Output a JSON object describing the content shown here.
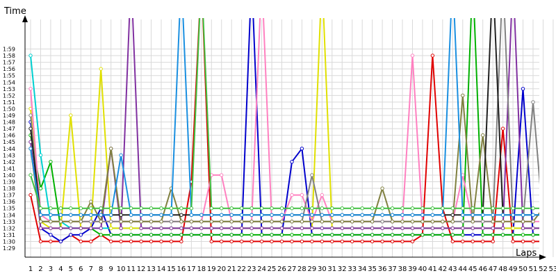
{
  "chart_data": {
    "type": "line",
    "title": "",
    "xlabel": "Laps",
    "ylabel": "Time",
    "grid": true,
    "legend": "none",
    "x": [
      1,
      2,
      3,
      4,
      5,
      6,
      7,
      8,
      9,
      10,
      11,
      12,
      13,
      14,
      15,
      16,
      17,
      18,
      19,
      20,
      21,
      22,
      23,
      24,
      25,
      26,
      27,
      28,
      29,
      30,
      31,
      32,
      33,
      34,
      35,
      36,
      37,
      38,
      39,
      40,
      41,
      42,
      43,
      44,
      45,
      46,
      47,
      48,
      49,
      50,
      51,
      52,
      53
    ],
    "x_tick_labels": [
      "1",
      "2",
      "3",
      "4",
      "5",
      "6",
      "7",
      "8",
      "9",
      "10",
      "11",
      "12",
      "13",
      "14",
      "15",
      "16",
      "17",
      "18",
      "19",
      "20",
      "21",
      "22",
      "23",
      "24",
      "25",
      "26",
      "27",
      "28",
      "29",
      "30",
      "31",
      "32",
      "33",
      "34",
      "35",
      "36",
      "37",
      "38",
      "39",
      "40",
      "41",
      "42",
      "43",
      "44",
      "45",
      "46",
      "47",
      "48",
      "49",
      "50",
      "51",
      "52",
      "53"
    ],
    "y_tick_labels": [
      "1:29",
      "1:30",
      "1:31",
      "1:32",
      "1:33",
      "1:34",
      "1:35",
      "1:36",
      "1:37",
      "1:38",
      "1:39",
      "1:40",
      "1:41",
      "1:42",
      "1:43",
      "1:44",
      "1:45",
      "1:46",
      "1:47",
      "1:48",
      "1:49",
      "1:50",
      "1:51",
      "1:52",
      "1:53",
      "1:54",
      "1:55",
      "1:56",
      "1:57",
      "1:58",
      "1:59"
    ],
    "y_unit": "seconds",
    "ylim": [
      89,
      120
    ],
    "series": [
      {
        "color": "#e00000",
        "values": [
          97,
          90,
          90,
          90,
          91,
          90,
          90,
          91,
          90,
          90,
          90,
          90,
          90,
          90,
          90,
          90,
          99,
          130,
          90,
          90,
          90,
          90,
          90,
          90,
          90,
          90,
          90,
          90,
          90,
          90,
          90,
          90,
          90,
          90,
          90,
          90,
          90,
          90,
          90,
          91,
          118,
          95,
          90,
          90,
          90,
          90,
          90,
          107,
          90,
          90,
          90,
          90,
          90
        ]
      },
      {
        "color": "#0000cc",
        "values": [
          108,
          92,
          91,
          90,
          91,
          91,
          92,
          95,
          91,
          91,
          91,
          91,
          91,
          91,
          91,
          91,
          91,
          91,
          91,
          91,
          91,
          91,
          130,
          91,
          91,
          91,
          102,
          104,
          91,
          91,
          91,
          91,
          91,
          91,
          91,
          91,
          91,
          91,
          91,
          91,
          91,
          91,
          91,
          91,
          91,
          91,
          91,
          91,
          91,
          113,
          91,
          91,
          91
        ]
      },
      {
        "color": "#00b000",
        "values": [
          106,
          98,
          102,
          92,
          92,
          92,
          92,
          91,
          91,
          91,
          91,
          91,
          91,
          91,
          91,
          91,
          91,
          91,
          91,
          91,
          91,
          91,
          91,
          91,
          91,
          91,
          91,
          91,
          91,
          91,
          91,
          91,
          91,
          91,
          91,
          91,
          91,
          91,
          91,
          91,
          91,
          91,
          91,
          91,
          130,
          91,
          91,
          91,
          91,
          91,
          91,
          91,
          91
        ]
      },
      {
        "color": "#00d0d0",
        "values": [
          118,
          103,
          93,
          93,
          92,
          92,
          92,
          92,
          92,
          92,
          92,
          92,
          92,
          92,
          92,
          92,
          92,
          92,
          92,
          92,
          92,
          92,
          92,
          92,
          92,
          92,
          92,
          92,
          92,
          92,
          92,
          92,
          92,
          92,
          92,
          92,
          92,
          92,
          92,
          92,
          92,
          92,
          92,
          92,
          92,
          92,
          92,
          92,
          92,
          92,
          92,
          92,
          92
        ]
      },
      {
        "color": "#e0e000",
        "values": [
          110,
          93,
          92,
          92,
          109,
          92,
          92,
          116,
          92,
          92,
          92,
          92,
          92,
          92,
          92,
          92,
          92,
          92,
          92,
          92,
          92,
          92,
          92,
          92,
          92,
          92,
          92,
          92,
          92,
          130,
          92,
          92,
          92,
          92,
          92,
          92,
          92,
          92,
          92,
          92,
          92,
          92,
          92,
          92,
          92,
          92,
          92,
          92,
          92,
          92,
          92,
          92,
          92
        ]
      },
      {
        "color": "#8030a0",
        "values": [
          105,
          92,
          92,
          92,
          92,
          92,
          92,
          92,
          104,
          92,
          130,
          92,
          92,
          92,
          92,
          92,
          92,
          92,
          92,
          92,
          92,
          92,
          92,
          92,
          92,
          92,
          92,
          92,
          92,
          92,
          92,
          92,
          92,
          92,
          92,
          92,
          92,
          92,
          92,
          92,
          92,
          92,
          92,
          92,
          92,
          92,
          92,
          92,
          130,
          92,
          92,
          92,
          92
        ]
      },
      {
        "color": "#ff80c0",
        "values": [
          113,
          94,
          93,
          93,
          93,
          93,
          93,
          93,
          93,
          93,
          93,
          93,
          93,
          93,
          93,
          93,
          93,
          93,
          100,
          100,
          93,
          93,
          93,
          130,
          93,
          93,
          97,
          97,
          93,
          97,
          93,
          93,
          93,
          93,
          93,
          93,
          93,
          93,
          118,
          93,
          93,
          93,
          93,
          100,
          93,
          93,
          93,
          93,
          93,
          93,
          93,
          93,
          93
        ]
      },
      {
        "color": "#808080",
        "values": [
          109,
          93,
          93,
          93,
          93,
          93,
          93,
          93,
          93,
          93,
          93,
          93,
          93,
          93,
          93,
          93,
          93,
          93,
          93,
          93,
          93,
          93,
          93,
          93,
          93,
          93,
          93,
          93,
          100,
          93,
          93,
          93,
          93,
          93,
          93,
          93,
          93,
          93,
          93,
          93,
          93,
          93,
          93,
          93,
          93,
          93,
          93,
          130,
          93,
          93,
          111,
          93,
          93
        ]
      },
      {
        "color": "#808040",
        "values": [
          104,
          93,
          93,
          93,
          93,
          93,
          96,
          93,
          104,
          93,
          93,
          93,
          93,
          93,
          98,
          93,
          93,
          93,
          93,
          93,
          93,
          93,
          93,
          93,
          93,
          93,
          93,
          93,
          93,
          93,
          93,
          93,
          93,
          93,
          93,
          98,
          93,
          93,
          93,
          93,
          93,
          93,
          93,
          112,
          93,
          106,
          93,
          93,
          93,
          93,
          93,
          95,
          93
        ]
      },
      {
        "color": "#202020",
        "values": [
          107,
          94,
          94,
          94,
          94,
          94,
          94,
          94,
          94,
          94,
          94,
          94,
          94,
          94,
          94,
          94,
          94,
          94,
          94,
          94,
          94,
          94,
          94,
          94,
          94,
          94,
          94,
          94,
          94,
          94,
          94,
          94,
          94,
          94,
          94,
          94,
          94,
          94,
          94,
          94,
          94,
          94,
          94,
          94,
          94,
          94,
          130,
          94,
          94,
          94,
          94,
          94,
          94
        ]
      },
      {
        "color": "#1a8fe0",
        "values": [
          104,
          94,
          94,
          94,
          94,
          94,
          94,
          94,
          94,
          103,
          94,
          94,
          94,
          94,
          94,
          130,
          94,
          94,
          94,
          94,
          94,
          94,
          94,
          94,
          94,
          94,
          94,
          94,
          94,
          94,
          94,
          94,
          94,
          94,
          94,
          94,
          94,
          94,
          94,
          94,
          94,
          94,
          130,
          94,
          94,
          94,
          94,
          94,
          94,
          94,
          94,
          94,
          94
        ]
      },
      {
        "color": "#40c040",
        "values": [
          100,
          95,
          95,
          95,
          95,
          95,
          95,
          95,
          95,
          95,
          95,
          95,
          95,
          95,
          95,
          95,
          95,
          130,
          95,
          95,
          95,
          95,
          95,
          95,
          95,
          95,
          95,
          95,
          95,
          95,
          95,
          95,
          95,
          95,
          95,
          95,
          95,
          95,
          95,
          95,
          95,
          95,
          95,
          95,
          95,
          95,
          95,
          95,
          95,
          95,
          95,
          95,
          95
        ]
      }
    ]
  }
}
